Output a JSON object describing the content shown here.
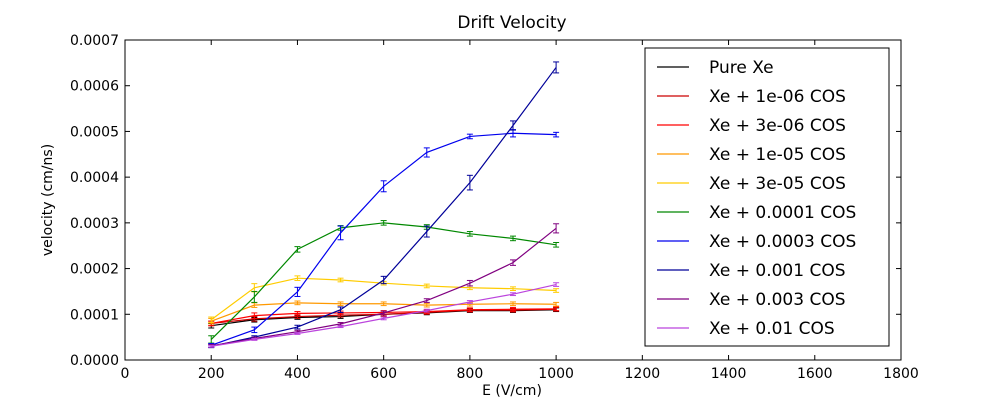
{
  "chart_data": {
    "type": "line",
    "title": "Drift Velocity",
    "xlabel": "E (V/cm)",
    "ylabel": "velocity (cm/ns)",
    "xlim": [
      0,
      1800
    ],
    "ylim": [
      0,
      0.0007
    ],
    "x_ticks": [
      "0",
      "200",
      "400",
      "600",
      "800",
      "1000",
      "1200",
      "1400",
      "1600",
      "1800"
    ],
    "y_ticks": [
      "0.0000",
      "0.0001",
      "0.0002",
      "0.0003",
      "0.0004",
      "0.0005",
      "0.0006",
      "0.0007"
    ],
    "grid": false,
    "legend_position": "top-right",
    "x": [
      200,
      300,
      400,
      500,
      600,
      700,
      800,
      900,
      1000
    ],
    "series": [
      {
        "name": "Pure Xe",
        "color": "#000000",
        "values": [
          7.5e-05,
          8.8e-05,
          9.3e-05,
          9.5e-05,
          0.0001,
          0.000103,
          0.000108,
          0.000108,
          0.00011
        ],
        "errors": [
          5e-06,
          5e-06,
          4e-06,
          4e-06,
          4e-06,
          4e-06,
          4e-06,
          4e-06,
          4e-06
        ]
      },
      {
        "name": "Xe + 1e-06 COS",
        "color": "#cc0000",
        "values": [
          8e-05,
          9e-05,
          9.5e-05,
          9.8e-05,
          0.0001,
          0.000104,
          0.000109,
          0.000109,
          0.000111
        ],
        "errors": [
          5e-06,
          5e-06,
          4e-06,
          4e-06,
          4e-06,
          4e-06,
          4e-06,
          4e-06,
          4e-06
        ]
      },
      {
        "name": "Xe + 3e-06 COS",
        "color": "#ff0000",
        "values": [
          8e-05,
          9.7e-05,
          0.000102,
          0.000103,
          0.000104,
          0.000106,
          0.00011,
          0.000111,
          0.000112
        ],
        "errors": [
          5e-06,
          6e-06,
          4e-06,
          4e-06,
          4e-06,
          4e-06,
          4e-06,
          4e-06,
          4e-06
        ]
      },
      {
        "name": "Xe + 1e-05 COS",
        "color": "#ff9900",
        "values": [
          8.5e-05,
          0.00012,
          0.000125,
          0.000123,
          0.000123,
          0.00012,
          0.000122,
          0.000123,
          0.000122
        ],
        "errors": [
          6e-06,
          5e-06,
          4e-06,
          4e-06,
          4e-06,
          4e-06,
          4e-06,
          4e-06,
          4e-06
        ]
      },
      {
        "name": "Xe + 3e-05 COS",
        "color": "#ffcc00",
        "values": [
          8.8e-05,
          0.000158,
          0.000179,
          0.000175,
          0.000168,
          0.000162,
          0.000158,
          0.000156,
          0.000152
        ],
        "errors": [
          6e-06,
          9e-06,
          5e-06,
          4e-06,
          4e-06,
          4e-06,
          4e-06,
          4e-06,
          4e-06
        ]
      },
      {
        "name": "Xe + 0.0001 COS",
        "color": "#008800",
        "values": [
          4.5e-05,
          0.000138,
          0.000242,
          0.000289,
          0.0003,
          0.000291,
          0.000276,
          0.000266,
          0.000252
        ],
        "errors": [
          8e-06,
          1.2e-05,
          6e-06,
          5e-06,
          5e-06,
          5e-06,
          5e-06,
          5e-06,
          5e-06
        ]
      },
      {
        "name": "Xe + 0.0003 COS",
        "color": "#0000ee",
        "values": [
          3.2e-05,
          6.6e-05,
          0.000149,
          0.000278,
          0.00038,
          0.000454,
          0.000489,
          0.000496,
          0.000493
        ],
        "errors": [
          4e-06,
          6e-06,
          1e-05,
          1.5e-05,
          1.2e-05,
          1e-05,
          5e-06,
          8e-06,
          5e-06
        ]
      },
      {
        "name": "Xe + 0.001 COS",
        "color": "#000099",
        "values": [
          3e-05,
          5e-05,
          7.2e-05,
          0.00011,
          0.000175,
          0.000281,
          0.000388,
          0.000513,
          0.00064
        ],
        "errors": [
          3e-06,
          3e-06,
          4e-06,
          6e-06,
          8e-06,
          1.2e-05,
          1.6e-05,
          1e-05,
          1.2e-05
        ]
      },
      {
        "name": "Xe + 0.003 COS",
        "color": "#800080",
        "values": [
          3.1e-05,
          4.7e-05,
          6.2e-05,
          7.9e-05,
          0.000103,
          0.00013,
          0.000168,
          0.000213,
          0.000288
        ],
        "errors": [
          3e-06,
          3e-06,
          3e-06,
          3e-06,
          4e-06,
          4e-06,
          6e-06,
          6e-06,
          1e-05
        ]
      },
      {
        "name": "Xe + 0.01 COS",
        "color": "#bb44dd",
        "values": [
          3e-05,
          4.5e-05,
          5.8e-05,
          7.3e-05,
          9.1e-05,
          0.000108,
          0.000127,
          0.000144,
          0.000165
        ],
        "errors": [
          2e-06,
          2e-06,
          2e-06,
          2e-06,
          3e-06,
          3e-06,
          3e-06,
          3e-06,
          4e-06
        ]
      }
    ]
  }
}
